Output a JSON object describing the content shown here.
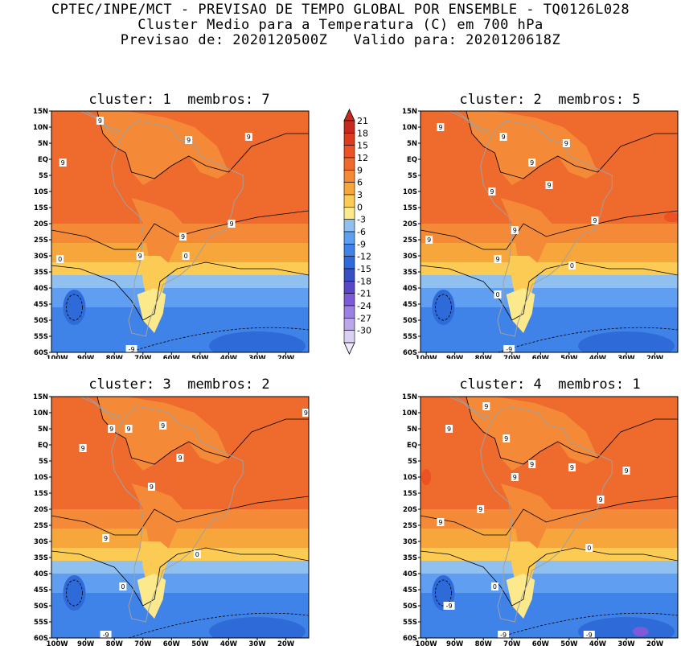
{
  "header": {
    "line1": "CPTEC/INPE/MCT - PREVISAO DE TEMPO GLOBAL POR ENSEMBLE - TQ0126L028",
    "line2": "Cluster Medio para a Temperatura (C) em 700 hPa",
    "line3": "Previsao de: 2020120500Z   Valido para: 2020120618Z"
  },
  "panels": [
    {
      "title": "cluster: 1  membros: 7",
      "cluster": 1,
      "members": 7,
      "labels": [
        {
          "t": "9",
          "lon": -85,
          "lat": 12
        },
        {
          "t": "9",
          "lon": -98,
          "lat": -1
        },
        {
          "t": "9",
          "lon": -54,
          "lat": 6
        },
        {
          "t": "9",
          "lon": -33,
          "lat": 7
        },
        {
          "t": "9",
          "lon": -56,
          "lat": -24
        },
        {
          "t": "9",
          "lon": -39,
          "lat": -20
        },
        {
          "t": "9",
          "lon": -71,
          "lat": -30
        },
        {
          "t": "0",
          "lon": -99,
          "lat": -31
        },
        {
          "t": "0",
          "lon": -55,
          "lat": -30
        },
        {
          "t": "-9",
          "lon": -74,
          "lat": -59
        }
      ]
    },
    {
      "title": "cluster: 2  membros: 5",
      "cluster": 2,
      "members": 5,
      "labels": [
        {
          "t": "9",
          "lon": -95,
          "lat": 10
        },
        {
          "t": "9",
          "lon": -73,
          "lat": 7
        },
        {
          "t": "9",
          "lon": -63,
          "lat": -1
        },
        {
          "t": "9",
          "lon": -51,
          "lat": 5
        },
        {
          "t": "9",
          "lon": -57,
          "lat": -8
        },
        {
          "t": "9",
          "lon": -77,
          "lat": -10
        },
        {
          "t": "9",
          "lon": -69,
          "lat": -22
        },
        {
          "t": "9",
          "lon": -41,
          "lat": -19
        },
        {
          "t": "9",
          "lon": -99,
          "lat": -25
        },
        {
          "t": "9",
          "lon": -75,
          "lat": -31
        },
        {
          "t": "0",
          "lon": -49,
          "lat": -33
        },
        {
          "t": "0",
          "lon": -75,
          "lat": -42
        },
        {
          "t": "-9",
          "lon": -71,
          "lat": -59
        }
      ]
    },
    {
      "title": "cluster: 3  membros: 2",
      "cluster": 3,
      "members": 2,
      "labels": [
        {
          "t": "9",
          "lon": -91,
          "lat": -1
        },
        {
          "t": "9",
          "lon": -81,
          "lat": 5
        },
        {
          "t": "9",
          "lon": -75,
          "lat": 5
        },
        {
          "t": "9",
          "lon": -63,
          "lat": 6
        },
        {
          "t": "9",
          "lon": -57,
          "lat": -4
        },
        {
          "t": "9",
          "lon": -67,
          "lat": -13
        },
        {
          "t": "9",
          "lon": -83,
          "lat": -29
        },
        {
          "t": "9",
          "lon": -13,
          "lat": 10
        },
        {
          "t": "0",
          "lon": -51,
          "lat": -34
        },
        {
          "t": "0",
          "lon": -77,
          "lat": -44
        },
        {
          "t": "-9",
          "lon": -83,
          "lat": -59
        }
      ]
    },
    {
      "title": "cluster: 4  membros: 1",
      "cluster": 4,
      "members": 1,
      "labels": [
        {
          "t": "9",
          "lon": -79,
          "lat": 12
        },
        {
          "t": "9",
          "lon": -92,
          "lat": 5
        },
        {
          "t": "9",
          "lon": -72,
          "lat": 2
        },
        {
          "t": "9",
          "lon": -81,
          "lat": -20
        },
        {
          "t": "9",
          "lon": -49,
          "lat": -7
        },
        {
          "t": "9",
          "lon": -63,
          "lat": -6
        },
        {
          "t": "9",
          "lon": -69,
          "lat": -10
        },
        {
          "t": "9",
          "lon": -39,
          "lat": -17
        },
        {
          "t": "9",
          "lon": -30,
          "lat": -8
        },
        {
          "t": "9",
          "lon": -95,
          "lat": -24
        },
        {
          "t": "0",
          "lon": -76,
          "lat": -44
        },
        {
          "t": "0",
          "lon": -43,
          "lat": -32
        },
        {
          "t": "-9",
          "lon": -92,
          "lat": -50
        },
        {
          "t": "-9",
          "lon": -73,
          "lat": -59
        },
        {
          "t": "-9",
          "lon": -43,
          "lat": -59
        }
      ]
    }
  ],
  "map": {
    "lon_ticks": [
      "100W",
      "90W",
      "80W",
      "70W",
      "60W",
      "50W",
      "40W",
      "30W",
      "20W"
    ],
    "lat_ticks": [
      "15N",
      "10N",
      "5N",
      "EQ",
      "5S",
      "10S",
      "15S",
      "20S",
      "25S",
      "30S",
      "35S",
      "40S",
      "45S",
      "50S",
      "55S",
      "60S"
    ]
  },
  "colorbar": {
    "labels": [
      "21",
      "18",
      "15",
      "12",
      "9",
      "6",
      "3",
      "0",
      "-3",
      "-6",
      "-9",
      "-12",
      "-15",
      "-18",
      "-21",
      "-24",
      "-27",
      "-30"
    ],
    "colors": [
      "#c62a1e",
      "#dd3b1d",
      "#ec5223",
      "#ef6a2d",
      "#f48a37",
      "#f7a63c",
      "#fbcb53",
      "#fbe98c",
      "#8fc0f0",
      "#5f9ef0",
      "#3f82e8",
      "#2e6ad8",
      "#3950c4",
      "#5a47c8",
      "#7d5ad8",
      "#9d80e3",
      "#bca6ec",
      "#dccff4"
    ]
  }
}
